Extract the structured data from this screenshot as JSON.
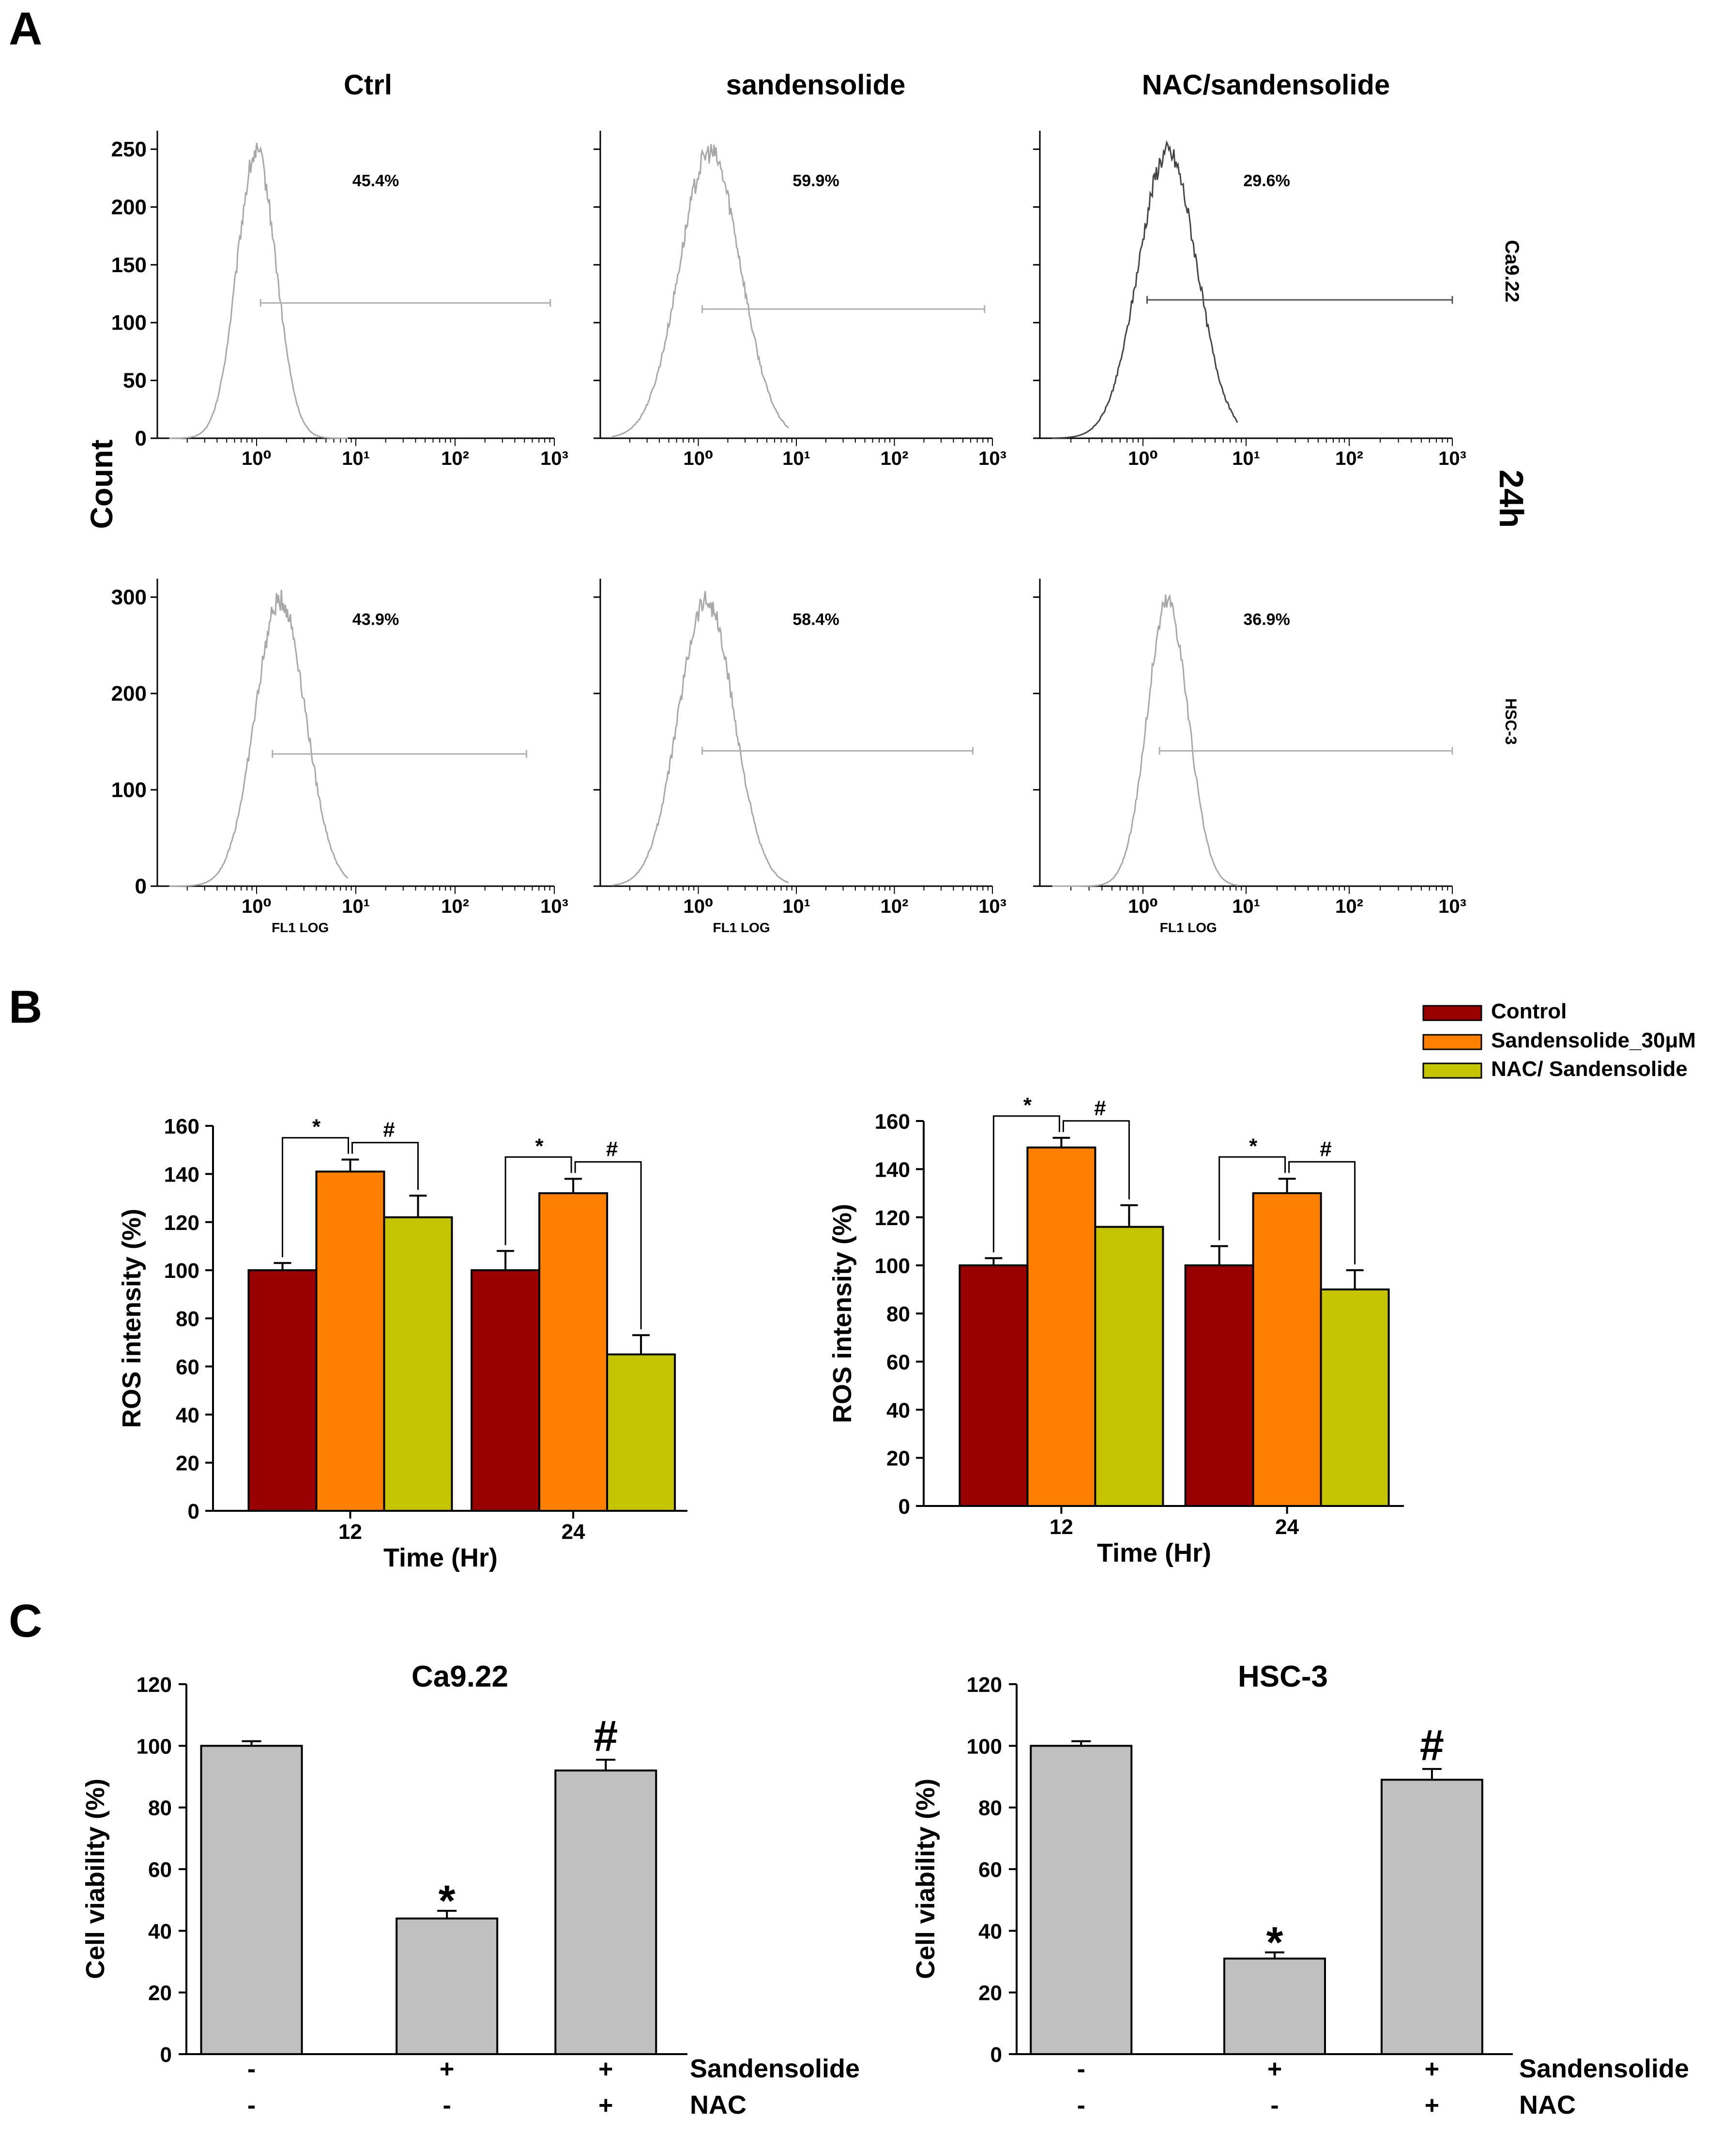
{
  "panels": {
    "a": "A",
    "b": "B",
    "c": "C"
  },
  "flow": {
    "conditions": [
      "Ctrl",
      "sandensolide",
      "NAC/sandensolide"
    ],
    "y_label": "Count",
    "x_label": "FL1 LOG",
    "time_label": "24h",
    "rows": [
      {
        "cell_line": "Ca9.22",
        "yticks": [
          "250",
          "200",
          "150",
          "100",
          "50",
          "0"
        ],
        "percents": [
          "45.4%",
          "59.9%",
          "29.6%"
        ]
      },
      {
        "cell_line": "HSC-3",
        "yticks": [
          "300",
          "200",
          "100",
          "0"
        ],
        "percents": [
          "43.9%",
          "58.4%",
          "36.9%"
        ]
      }
    ],
    "xticks": [
      "10⁰",
      "10¹",
      "10²",
      "10³"
    ]
  },
  "chart_data": [
    {
      "type": "bar",
      "panel": "B-left",
      "categories": [
        "12",
        "24"
      ],
      "series": [
        {
          "name": "Control",
          "values": [
            100,
            100
          ],
          "errors": [
            3,
            8
          ]
        },
        {
          "name": "Sandensolide_30μM",
          "values": [
            141,
            132
          ],
          "errors": [
            5,
            6
          ]
        },
        {
          "name": "NAC/ Sandensolide",
          "values": [
            122,
            65
          ],
          "errors": [
            9,
            8
          ]
        }
      ],
      "colors": [
        "#990000",
        "#ff8000",
        "#c4c400"
      ],
      "xlabel": "Time (Hr)",
      "ylabel": "ROS intensity (%)",
      "ylim": [
        0,
        160
      ],
      "yticks": [
        "0",
        "20",
        "40",
        "60",
        "80",
        "100",
        "120",
        "140",
        "160"
      ],
      "significance": {
        "star": "*",
        "hash": "#"
      }
    },
    {
      "type": "bar",
      "panel": "B-right",
      "categories": [
        "12",
        "24"
      ],
      "series": [
        {
          "name": "Control",
          "values": [
            100,
            100
          ],
          "errors": [
            3,
            8
          ]
        },
        {
          "name": "Sandensolide_30μM",
          "values": [
            149,
            130
          ],
          "errors": [
            4,
            6
          ]
        },
        {
          "name": "NAC/ Sandensolide",
          "values": [
            116,
            90
          ],
          "errors": [
            9,
            8
          ]
        }
      ],
      "colors": [
        "#990000",
        "#ff8000",
        "#c4c400"
      ],
      "xlabel": "Time (Hr)",
      "ylabel": "ROS intensity (%)",
      "ylim": [
        0,
        160
      ],
      "yticks": [
        "0",
        "20",
        "40",
        "60",
        "80",
        "100",
        "120",
        "140",
        "160"
      ],
      "legend": [
        "Control",
        "Sandensolide_30μM",
        "NAC/ Sandensolide"
      ],
      "significance": {
        "star": "*",
        "hash": "#"
      }
    },
    {
      "type": "bar",
      "panel": "C-left",
      "title": "Ca9.22",
      "ylabel": "Cell viability (%)",
      "ylim": [
        0,
        120
      ],
      "yticks": [
        "0",
        "20",
        "40",
        "60",
        "80",
        "100",
        "120"
      ],
      "values": [
        100,
        44,
        92
      ],
      "errors": [
        1.5,
        2.5,
        3.5
      ],
      "color": "#c0c0c0",
      "rows": [
        {
          "label": "Sandensolide",
          "signs": [
            "-",
            "+",
            "+"
          ]
        },
        {
          "label": "NAC",
          "signs": [
            "-",
            "-",
            "+"
          ]
        }
      ],
      "marks": [
        "",
        "*",
        "#"
      ]
    },
    {
      "type": "bar",
      "panel": "C-right",
      "title": "HSC-3",
      "ylabel": "Cell viability (%)",
      "ylim": [
        0,
        120
      ],
      "yticks": [
        "0",
        "20",
        "40",
        "60",
        "80",
        "100",
        "120"
      ],
      "values": [
        100,
        31,
        89
      ],
      "errors": [
        1.5,
        2,
        3.5
      ],
      "color": "#c0c0c0",
      "rows": [
        {
          "label": "Sandensolide",
          "signs": [
            "-",
            "+",
            "+"
          ]
        },
        {
          "label": "NAC",
          "signs": [
            "-",
            "-",
            "+"
          ]
        }
      ],
      "marks": [
        "",
        "*",
        "#"
      ]
    }
  ]
}
